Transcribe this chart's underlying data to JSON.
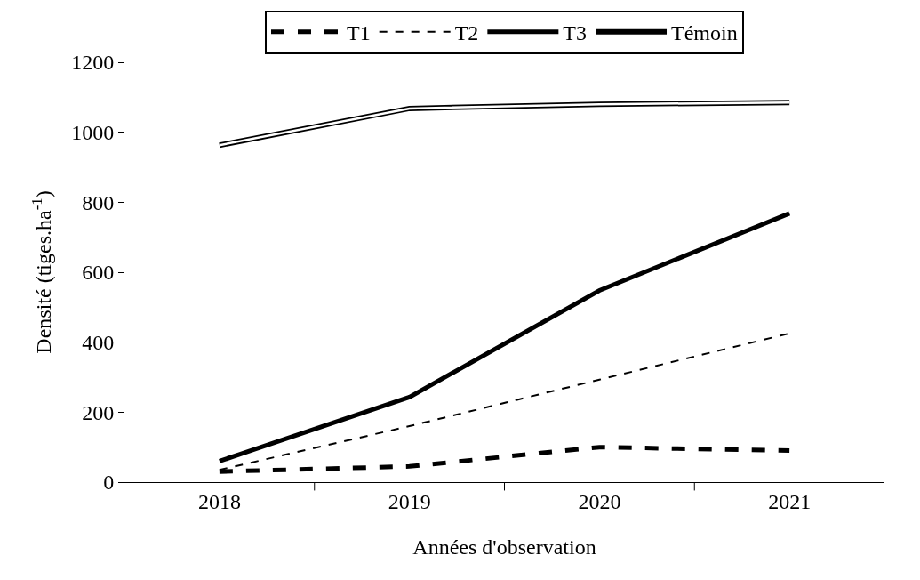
{
  "chart_data": {
    "type": "line",
    "xlabel": "Années d'observation",
    "ylabel": "Densité (tiges.ha$^{-1}$)",
    "categories": [
      "2018",
      "2019",
      "2020",
      "2021"
    ],
    "series": [
      {
        "name": "T1",
        "color": "#000000",
        "line_style": "dashed",
        "values": [
          30,
          45,
          100,
          90
        ]
      },
      {
        "name": "T2",
        "color": "#000000",
        "line_style": "dashed",
        "values": [
          35,
          160,
          293,
          425
        ]
      },
      {
        "name": "T3",
        "color": "#000000",
        "line_style": "solid",
        "values": [
          60,
          243,
          548,
          768
        ]
      },
      {
        "name": "Témoin",
        "color": "#000000",
        "line_style": "solid",
        "values": [
          963,
          1068,
          1080,
          1085
        ]
      }
    ],
    "ylim": [
      0,
      1200
    ],
    "yticks": [
      0,
      200,
      400,
      600,
      800,
      1000,
      1200
    ],
    "grid": false,
    "legend": "top",
    "marker": "none"
  }
}
